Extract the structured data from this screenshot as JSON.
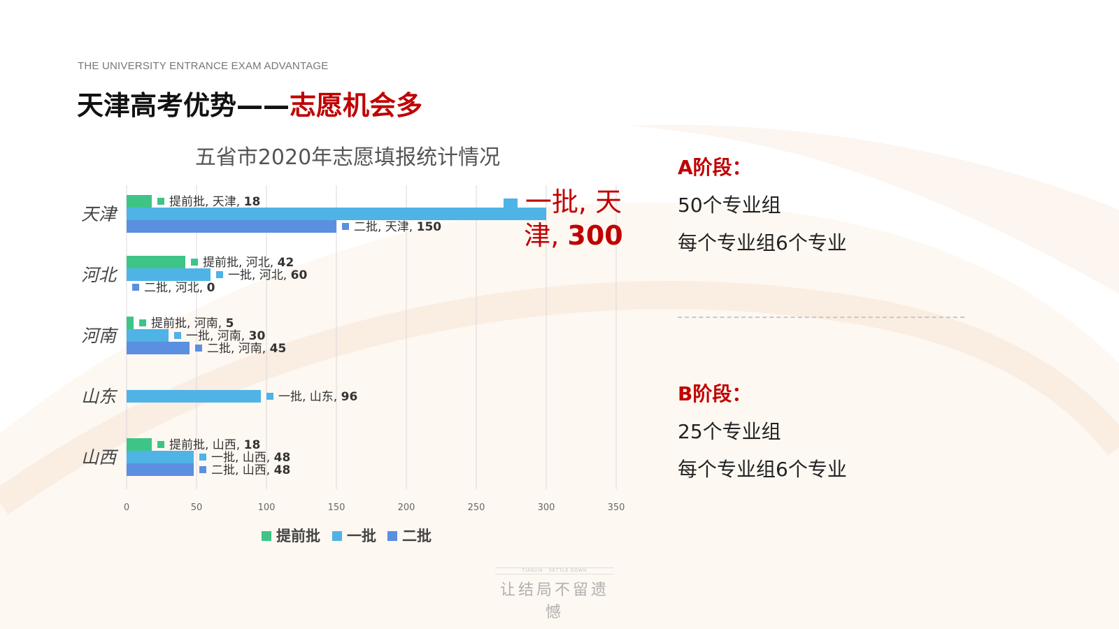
{
  "header": {
    "subtitle": "THE UNIVERSITY ENTRANCE EXAM ADVANTAGE",
    "title_main": "天津高考优势——",
    "title_highlight": "志愿机会多"
  },
  "chart_data": {
    "type": "bar",
    "orientation": "horizontal",
    "title": "五省市2020年志愿填报统计情况",
    "categories": [
      "天津",
      "河北",
      "河南",
      "山东",
      "山西"
    ],
    "series": [
      {
        "name": "提前批",
        "color": "#3fc488",
        "values": [
          18,
          42,
          5,
          null,
          18
        ]
      },
      {
        "name": "一批",
        "color": "#4fb3e6",
        "values": [
          300,
          60,
          30,
          96,
          48
        ]
      },
      {
        "name": "二批",
        "color": "#5b8fe0",
        "values": [
          150,
          0,
          45,
          null,
          48
        ]
      }
    ],
    "xlim": [
      0,
      350
    ],
    "xticks": [
      0,
      50,
      100,
      150,
      200,
      250,
      300,
      350
    ],
    "grid": true,
    "legend": "bottom",
    "data_label_separator": ", ",
    "callout_label_color": "#c00000"
  },
  "panel": {
    "stage_a": {
      "heading": "A阶段：",
      "line1": "50个专业组",
      "line2": "每个专业组6个专业"
    },
    "stage_b": {
      "heading": "B阶段：",
      "line1": "25个专业组",
      "line2": "每个专业组6个专业"
    }
  },
  "footer": {
    "small_text": "TIANJIN · SETTLE DOWN",
    "slogan": "让结局不留遗憾"
  }
}
